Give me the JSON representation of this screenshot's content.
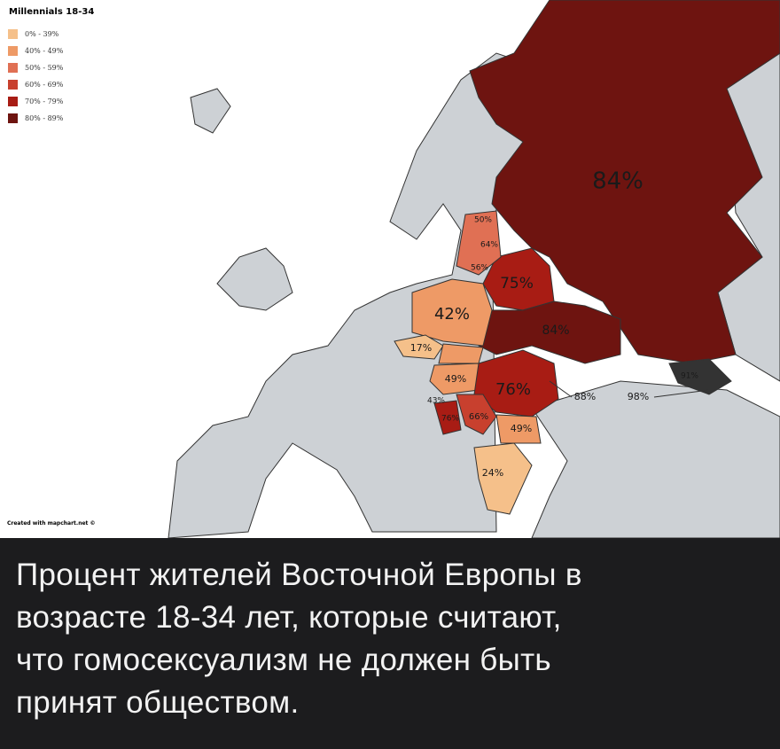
{
  "legend": {
    "title": "Millennials 18-34",
    "items": [
      "0% - 39%",
      "40% - 49%",
      "50% - 59%",
      "60% - 69%",
      "70% - 79%",
      "80% - 89%"
    ]
  },
  "map": {
    "labels": [
      "84%",
      "50%",
      "64%",
      "56%",
      "75%",
      "42%",
      "84%",
      "17%",
      "49%",
      "76%",
      "43%",
      "76%",
      "66%",
      "49%",
      "24%",
      "88%",
      "98%",
      "91%"
    ]
  },
  "credit": "Created with mapchart.net ©",
  "caption": {
    "lines": [
      "Процент жителей Восточной Европы в",
      "возрасте 18-34 лет, которые считают,",
      "что гомосексуализм не должен быть",
      "принят обществом."
    ]
  }
}
